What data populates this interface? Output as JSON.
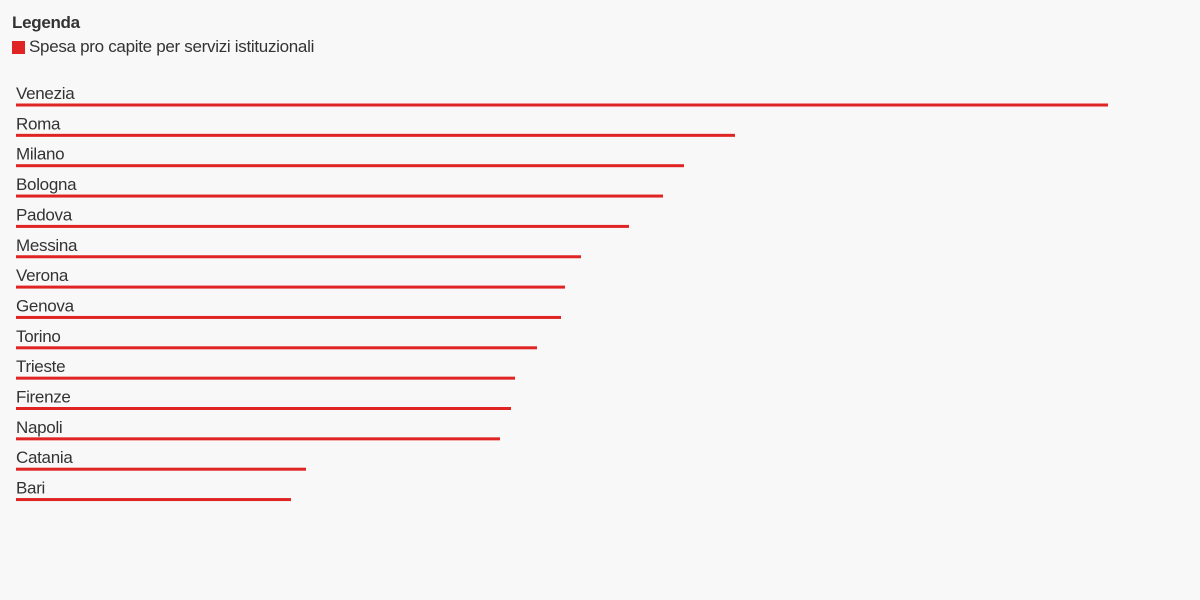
{
  "legend": {
    "title": "Legenda",
    "series_label": "Spesa pro capite per servizi istituzionali"
  },
  "colors": {
    "bar": "#e02424",
    "text": "#333333",
    "background": "#f8f8f9"
  },
  "chart_data": {
    "type": "bar",
    "orientation": "horizontal",
    "series": [
      {
        "name": "Spesa pro capite per servizi istituzionali",
        "values": [
          1092,
          719,
          668,
          647,
          613,
          565,
          549,
          545,
          521,
          499,
          495,
          484,
          290,
          275
        ]
      }
    ],
    "categories": [
      "Venezia",
      "Roma",
      "Milano",
      "Bologna",
      "Padova",
      "Messina",
      "Verona",
      "Genova",
      "Torino",
      "Trieste",
      "Firenze",
      "Napoli",
      "Catania",
      "Bari"
    ],
    "values": [
      1092,
      719,
      668,
      647,
      613,
      565,
      549,
      545,
      521,
      499,
      495,
      484,
      290,
      275
    ],
    "xlim": [
      0,
      1092
    ],
    "grid": false,
    "legend_position": "top-left"
  }
}
